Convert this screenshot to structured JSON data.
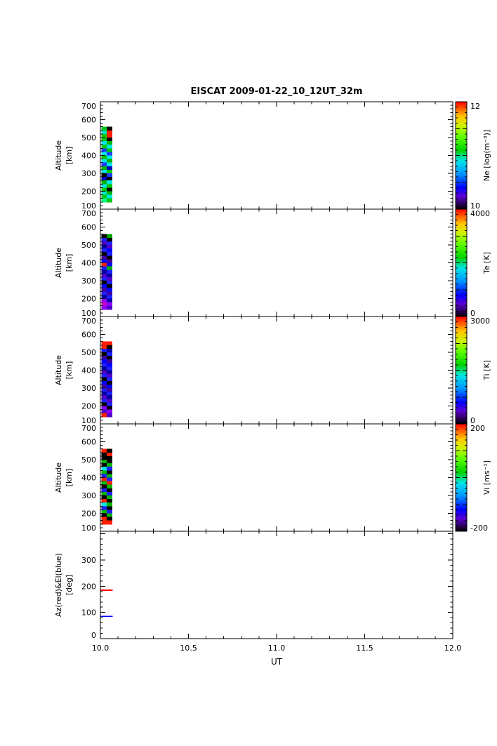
{
  "chart_data": {
    "type": "heatmap",
    "title": "EISCAT 2009-01-22_10_12UT_32m",
    "xlabel": "UT",
    "x_range": [
      10.0,
      12.0
    ],
    "x_tick_labels": [
      "10.0",
      "10.5",
      "11.0",
      "11.5",
      "12.0"
    ],
    "x_minor_step": 0.1,
    "colormap_stops": [
      {
        "offset": "0%",
        "color": "#000000"
      },
      {
        "offset": "5%",
        "color": "#2b0057"
      },
      {
        "offset": "12%",
        "color": "#5a00d2"
      },
      {
        "offset": "20%",
        "color": "#0000ff"
      },
      {
        "offset": "33%",
        "color": "#0096ff"
      },
      {
        "offset": "45%",
        "color": "#00e6e6"
      },
      {
        "offset": "55%",
        "color": "#00d200"
      },
      {
        "offset": "68%",
        "color": "#64ff00"
      },
      {
        "offset": "78%",
        "color": "#d2f000"
      },
      {
        "offset": "86%",
        "color": "#ffc800"
      },
      {
        "offset": "93%",
        "color": "#ff6400"
      },
      {
        "offset": "100%",
        "color": "#ff0000"
      }
    ],
    "panels": [
      {
        "id": "ne",
        "ylabel_lines": [
          "Altitude",
          "[km]"
        ],
        "y_range": [
          100,
          700
        ],
        "y_ticks": [
          100,
          200,
          300,
          400,
          500,
          600,
          700
        ],
        "y_minor_step": 20,
        "colorbar": {
          "label": "Ne [log(m⁻³)]",
          "tick_top": "12",
          "tick_bottom": "10"
        },
        "strip": {
          "x_start": 10.005,
          "x_end": 10.065,
          "alt_top": 560,
          "alt_bottom": 140,
          "rows": [
            [
              "#00c819",
              "#000000"
            ],
            [
              "#00e6c8",
              "#ff1e00"
            ],
            [
              "#14c800",
              "#ff1e00"
            ],
            [
              "#00c819",
              "#0a0a0a"
            ],
            [
              "#00e6e6",
              "#00b400"
            ],
            [
              "#00c819",
              "#00e6e6"
            ],
            [
              "#1e3cff",
              "#00c800"
            ],
            [
              "#00e6e6",
              "#1e3cff"
            ],
            [
              "#00c800",
              "#00e6e6"
            ],
            [
              "#00e6e6",
              "#00b400"
            ],
            [
              "#1e3cff",
              "#00e6e6"
            ],
            [
              "#00b400",
              "#0000b4"
            ],
            [
              "#00e6e6",
              "#00c800"
            ],
            [
              "#000000",
              "#1e3cff"
            ],
            [
              "#0000b4",
              "#000000"
            ],
            [
              "#00b400",
              "#00e6e6"
            ],
            [
              "#00e6e6",
              "#00c800"
            ],
            [
              "#00c800",
              "#000000"
            ],
            [
              "#00e6c8",
              "#00b400"
            ],
            [
              "#00c819",
              "#00e6e6"
            ],
            [
              "#00ff7d",
              "#00c819"
            ]
          ]
        }
      },
      {
        "id": "te",
        "ylabel_lines": [
          "Altitude",
          "[km]"
        ],
        "y_range": [
          100,
          700
        ],
        "y_ticks": [
          100,
          200,
          300,
          400,
          500,
          600,
          700
        ],
        "y_minor_step": 20,
        "colorbar": {
          "label": "Te [K]",
          "tick_top": "4000",
          "tick_bottom": "0"
        },
        "strip": {
          "x_start": 10.005,
          "x_end": 10.065,
          "alt_top": 560,
          "alt_bottom": 140,
          "rows": [
            [
              "#000000",
              "#00a000"
            ],
            [
              "#1e1eff",
              "#000000"
            ],
            [
              "#5000c8",
              "#1e1eff"
            ],
            [
              "#0000a0",
              "#5000c8"
            ],
            [
              "#1e1eff",
              "#0000ff"
            ],
            [
              "#000000",
              "#1e1eff"
            ],
            [
              "#3c00a0",
              "#000000"
            ],
            [
              "#0000ff",
              "#3c00a0"
            ],
            [
              "#ff1e00",
              "#0000ff"
            ],
            [
              "#1e1eff",
              "#00b400"
            ],
            [
              "#0000a0",
              "#1e1eff"
            ],
            [
              "#5000c8",
              "#0000a0"
            ],
            [
              "#1e1eff",
              "#5000c8"
            ],
            [
              "#000000",
              "#1e1eff"
            ],
            [
              "#0000ff",
              "#000000"
            ],
            [
              "#3c00a0",
              "#0000ff"
            ],
            [
              "#1e1eff",
              "#3c00a0"
            ],
            [
              "#0000a0",
              "#1e1eff"
            ],
            [
              "#8c00ff",
              "#0000a0"
            ],
            [
              "#c800c8",
              "#8c00ff"
            ],
            [
              "#8c00ff",
              "#5000c8"
            ]
          ]
        }
      },
      {
        "id": "ti",
        "ylabel_lines": [
          "Altitude",
          "[km]"
        ],
        "y_range": [
          100,
          700
        ],
        "y_ticks": [
          100,
          200,
          300,
          400,
          500,
          600,
          700
        ],
        "y_minor_step": 20,
        "colorbar": {
          "label": "Ti [K]",
          "tick_top": "3000",
          "tick_bottom": "0"
        },
        "strip": {
          "x_start": 10.005,
          "x_end": 10.065,
          "alt_top": 560,
          "alt_bottom": 140,
          "rows": [
            [
              "#ff1e00",
              "#ff1e00"
            ],
            [
              "#ff1e00",
              "#000000"
            ],
            [
              "#1e1eff",
              "#0000a0"
            ],
            [
              "#000000",
              "#1e1eff"
            ],
            [
              "#3c00a0",
              "#000000"
            ],
            [
              "#0000ff",
              "#3c00a0"
            ],
            [
              "#1e1eff",
              "#0000ff"
            ],
            [
              "#0000a0",
              "#1e1eff"
            ],
            [
              "#5000c8",
              "#0000a0"
            ],
            [
              "#1e1eff",
              "#5000c8"
            ],
            [
              "#000000",
              "#1e1eff"
            ],
            [
              "#0000ff",
              "#000000"
            ],
            [
              "#3c00a0",
              "#0000ff"
            ],
            [
              "#1e1eff",
              "#3c00a0"
            ],
            [
              "#0000a0",
              "#1e1eff"
            ],
            [
              "#5000c8",
              "#0000a0"
            ],
            [
              "#1e1eff",
              "#5000c8"
            ],
            [
              "#000000",
              "#1e1eff"
            ],
            [
              "#8c00ff",
              "#000000"
            ],
            [
              "#5000c8",
              "#8c00ff"
            ],
            [
              "#ff1e00",
              "#5000c8"
            ]
          ]
        }
      },
      {
        "id": "vi",
        "ylabel_lines": [
          "Altitude",
          "[km]"
        ],
        "y_range": [
          100,
          700
        ],
        "y_ticks": [
          100,
          200,
          300,
          400,
          500,
          600,
          700
        ],
        "y_minor_step": 20,
        "colorbar": {
          "label": "Vi [ms⁻¹]",
          "tick_top": "200",
          "tick_bottom": "-200"
        },
        "strip": {
          "x_start": 10.005,
          "x_end": 10.065,
          "alt_top": 560,
          "alt_bottom": 140,
          "rows": [
            [
              "#ff1e00",
              "#000000"
            ],
            [
              "#000000",
              "#ff1e00"
            ],
            [
              "#000000",
              "#000000"
            ],
            [
              "#00b400",
              "#000000"
            ],
            [
              "#000000",
              "#00b400"
            ],
            [
              "#00e6e6",
              "#1e1eff"
            ],
            [
              "#00b400",
              "#000000"
            ],
            [
              "#1e1eff",
              "#00b400"
            ],
            [
              "#ff1e00",
              "#1e1eff"
            ],
            [
              "#00b400",
              "#ff1e00"
            ],
            [
              "#000000",
              "#00b400"
            ],
            [
              "#1e1eff",
              "#000000"
            ],
            [
              "#00b400",
              "#1e1eff"
            ],
            [
              "#000000",
              "#00b400"
            ],
            [
              "#ff1e00",
              "#000000"
            ],
            [
              "#00e6e6",
              "#00b400"
            ],
            [
              "#1e1eff",
              "#000000"
            ],
            [
              "#00b400",
              "#1e1eff"
            ],
            [
              "#000000",
              "#00b400"
            ],
            [
              "#ff1e00",
              "#000000"
            ],
            [
              "#ff1e00",
              "#ff1e00"
            ]
          ]
        }
      },
      {
        "id": "azel",
        "ylabel_lines": [
          "Az(red)&El(blue)",
          "[deg]"
        ],
        "y_range": [
          0,
          410
        ],
        "y_ticks": [
          0,
          100,
          200,
          300
        ],
        "y_minor_step": 20,
        "lines": [
          {
            "name": "azimuth",
            "color": "#ff0000",
            "value": 185,
            "x_start": 10.0,
            "x_end": 10.07
          },
          {
            "name": "elevation",
            "color": "#0000ff",
            "value": 85,
            "x_start": 10.0,
            "x_end": 10.07
          }
        ]
      }
    ]
  }
}
